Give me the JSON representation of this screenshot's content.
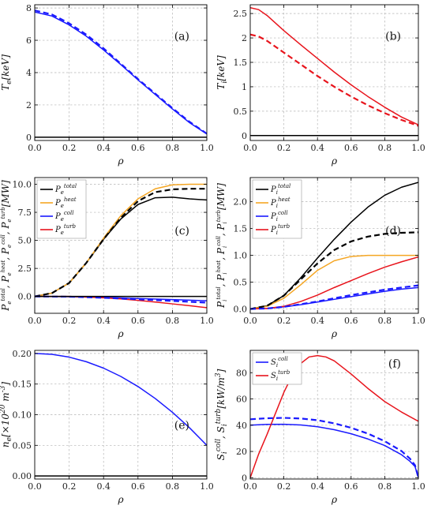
{
  "colors": {
    "black": "#000000",
    "blue": "#1a1aff",
    "red": "#e8141c",
    "orange": "#f5a623"
  },
  "chart_data": [
    {
      "id": "a",
      "type": "line",
      "panel_label": "(a)",
      "xlabel": "ρ",
      "ylabel": "T_e[keV]",
      "xlim": [
        0,
        1
      ],
      "ylim": [
        -0.2,
        8.2
      ],
      "xticks": [
        "0.0",
        "0.2",
        "0.4",
        "0.6",
        "0.8",
        "1.0"
      ],
      "yticks": [
        0,
        2,
        4,
        6,
        8
      ],
      "series": [
        {
          "style": "solid",
          "color": "#000000",
          "x": [
            0,
            1
          ],
          "y": [
            0,
            0
          ]
        },
        {
          "style": "solid",
          "color": "#1a1aff",
          "x": [
            0,
            0.1,
            0.2,
            0.3,
            0.4,
            0.5,
            0.6,
            0.7,
            0.8,
            0.9,
            1.0
          ],
          "y": [
            7.75,
            7.5,
            6.95,
            6.25,
            5.4,
            4.5,
            3.55,
            2.65,
            1.75,
            0.9,
            0.2
          ]
        },
        {
          "style": "dashed",
          "color": "#1a1aff",
          "x": [
            0,
            0.1,
            0.2,
            0.3,
            0.4,
            0.5,
            0.6,
            0.7,
            0.8,
            0.9,
            1.0
          ],
          "y": [
            7.85,
            7.6,
            7.05,
            6.35,
            5.5,
            4.55,
            3.6,
            2.7,
            1.8,
            0.95,
            0.22
          ]
        }
      ]
    },
    {
      "id": "b",
      "type": "line",
      "panel_label": "(b)",
      "xlabel": "ρ",
      "ylabel": "T_i[keV]",
      "xlim": [
        0,
        1
      ],
      "ylim": [
        -0.1,
        2.68
      ],
      "xticks": [
        "0.0",
        "0.2",
        "0.4",
        "0.6",
        "0.8",
        "1.0"
      ],
      "yticks": [
        0.0,
        0.5,
        1.0,
        1.5,
        2.0,
        2.5
      ],
      "series": [
        {
          "style": "solid",
          "color": "#000000",
          "x": [
            0,
            1
          ],
          "y": [
            0,
            0
          ]
        },
        {
          "style": "solid",
          "color": "#e8141c",
          "x": [
            0,
            0.05,
            0.1,
            0.2,
            0.3,
            0.4,
            0.5,
            0.6,
            0.7,
            0.8,
            0.9,
            1.0
          ],
          "y": [
            2.62,
            2.58,
            2.46,
            2.15,
            1.86,
            1.58,
            1.3,
            1.04,
            0.8,
            0.58,
            0.38,
            0.22
          ]
        },
        {
          "style": "dashed",
          "color": "#e8141c",
          "x": [
            0,
            0.05,
            0.1,
            0.2,
            0.3,
            0.4,
            0.5,
            0.6,
            0.7,
            0.8,
            0.9,
            1.0
          ],
          "y": [
            2.07,
            2.03,
            1.94,
            1.7,
            1.46,
            1.22,
            1.0,
            0.8,
            0.62,
            0.46,
            0.32,
            0.2
          ]
        }
      ]
    },
    {
      "id": "c",
      "type": "line",
      "panel_label": "(c)",
      "xlabel": "ρ",
      "ylabel": "P_e^total, P_e^heat, P_e^coll, P_e^turb[MW]",
      "xlim": [
        0,
        1
      ],
      "ylim": [
        -1.5,
        10.6
      ],
      "xticks": [
        "0.0",
        "0.2",
        "0.4",
        "0.6",
        "0.8",
        "1.0"
      ],
      "yticks": [
        "0.0",
        "2.5",
        "5.0",
        "7.5",
        "10.0"
      ],
      "legend": [
        "P_e^total",
        "P_e^heat",
        "P_e^coll",
        "P_e^turb"
      ],
      "legend_placement": "top-left",
      "series": [
        {
          "name": "P_e^total",
          "style": "solid",
          "color": "#000000",
          "x": [
            0,
            0.1,
            0.2,
            0.3,
            0.4,
            0.5,
            0.6,
            0.7,
            0.8,
            0.9,
            1.0
          ],
          "y": [
            0,
            0.3,
            1.2,
            3.0,
            5.1,
            6.9,
            8.2,
            8.8,
            8.85,
            8.7,
            8.6
          ]
        },
        {
          "name": "P_e^heat",
          "style": "solid",
          "color": "#f5a623",
          "x": [
            0,
            0.1,
            0.2,
            0.3,
            0.4,
            0.5,
            0.6,
            0.7,
            0.8,
            0.9,
            1.0
          ],
          "y": [
            0,
            0.3,
            1.2,
            3.0,
            5.2,
            7.2,
            8.7,
            9.6,
            9.95,
            10.0,
            10.0
          ]
        },
        {
          "name": "P_e^coll",
          "style": "solid",
          "color": "#1a1aff",
          "x": [
            0,
            0.2,
            0.4,
            0.6,
            0.8,
            1.0
          ],
          "y": [
            0,
            -0.02,
            -0.08,
            -0.18,
            -0.28,
            -0.38
          ]
        },
        {
          "name": "P_e^turb",
          "style": "solid",
          "color": "#e8141c",
          "x": [
            0,
            0.2,
            0.3,
            0.4,
            0.5,
            0.6,
            0.7,
            0.8,
            0.9,
            1.0
          ],
          "y": [
            0,
            0,
            -0.05,
            -0.12,
            -0.22,
            -0.35,
            -0.5,
            -0.66,
            -0.82,
            -1.0
          ]
        },
        {
          "style": "dashed",
          "color": "#000000",
          "x": [
            0,
            0.1,
            0.2,
            0.3,
            0.4,
            0.5,
            0.6,
            0.7,
            0.8,
            0.9,
            1.0
          ],
          "y": [
            0,
            0.3,
            1.2,
            3.0,
            5.1,
            7.0,
            8.5,
            9.3,
            9.55,
            9.6,
            9.6
          ]
        },
        {
          "style": "dashed",
          "color": "#1a1aff",
          "x": [
            0,
            0.2,
            0.4,
            0.6,
            0.8,
            1.0
          ],
          "y": [
            0,
            -0.02,
            -0.12,
            -0.25,
            -0.4,
            -0.55
          ]
        },
        {
          "style": "solid",
          "color": "#000000",
          "x": [
            0,
            1
          ],
          "y": [
            0,
            0
          ]
        }
      ]
    },
    {
      "id": "d",
      "type": "line",
      "panel_label": "(d)",
      "xlabel": "ρ",
      "ylabel": "P_i^total, P_i^heat, P_i^coll, P_i^turb[MW]",
      "xlim": [
        0,
        1
      ],
      "ylim": [
        -0.08,
        2.45
      ],
      "xticks": [
        "0.0",
        "0.2",
        "0.4",
        "0.6",
        "0.8",
        "1.0"
      ],
      "yticks": [
        "0.0",
        "0.5",
        "1.0",
        "1.5",
        "2.0"
      ],
      "legend": [
        "P_i^total",
        "P_i^heat",
        "P_i^coll",
        "P_i^turb"
      ],
      "legend_placement": "top-left",
      "series": [
        {
          "name": "P_i^total",
          "style": "solid",
          "color": "#000000",
          "x": [
            0,
            0.1,
            0.2,
            0.3,
            0.4,
            0.5,
            0.6,
            0.7,
            0.8,
            0.9,
            1.0
          ],
          "y": [
            0,
            0.06,
            0.25,
            0.58,
            0.95,
            1.3,
            1.62,
            1.9,
            2.12,
            2.27,
            2.36
          ]
        },
        {
          "name": "P_i^heat",
          "style": "solid",
          "color": "#f5a623",
          "x": [
            0,
            0.1,
            0.2,
            0.3,
            0.4,
            0.5,
            0.6,
            0.7,
            0.8,
            0.9,
            1.0
          ],
          "y": [
            0,
            0.05,
            0.2,
            0.45,
            0.72,
            0.9,
            0.98,
            1.0,
            1.0,
            1.0,
            1.0
          ]
        },
        {
          "name": "P_i^coll",
          "style": "solid",
          "color": "#1a1aff",
          "x": [
            0,
            0.1,
            0.2,
            0.3,
            0.4,
            0.5,
            0.6,
            0.7,
            0.8,
            0.9,
            1.0
          ],
          "y": [
            0,
            0.01,
            0.04,
            0.08,
            0.13,
            0.18,
            0.23,
            0.28,
            0.33,
            0.37,
            0.4
          ]
        },
        {
          "name": "P_i^turb",
          "style": "solid",
          "color": "#e8141c",
          "x": [
            0,
            0.1,
            0.2,
            0.3,
            0.4,
            0.5,
            0.6,
            0.7,
            0.8,
            0.9,
            1.0
          ],
          "y": [
            0,
            0.01,
            0.05,
            0.14,
            0.26,
            0.4,
            0.53,
            0.66,
            0.78,
            0.88,
            0.97
          ]
        },
        {
          "style": "dashed",
          "color": "#000000",
          "x": [
            0,
            0.1,
            0.2,
            0.3,
            0.4,
            0.5,
            0.6,
            0.7,
            0.8,
            0.9,
            1.0
          ],
          "y": [
            0,
            0.06,
            0.25,
            0.55,
            0.85,
            1.1,
            1.26,
            1.35,
            1.4,
            1.42,
            1.43
          ]
        },
        {
          "style": "dashed",
          "color": "#1a1aff",
          "x": [
            0,
            0.1,
            0.2,
            0.3,
            0.4,
            0.5,
            0.6,
            0.7,
            0.8,
            0.9,
            1.0
          ],
          "y": [
            0,
            0.01,
            0.04,
            0.09,
            0.14,
            0.2,
            0.26,
            0.31,
            0.36,
            0.4,
            0.44
          ]
        }
      ]
    },
    {
      "id": "e",
      "type": "line",
      "panel_label": "(e)",
      "xlabel": "ρ",
      "ylabel": "n_e[×10^20 m^-3]",
      "xlim": [
        0,
        1
      ],
      "ylim": [
        -0.005,
        0.205
      ],
      "xticks": [
        "0.0",
        "0.2",
        "0.4",
        "0.6",
        "0.8",
        "1.0"
      ],
      "yticks": [
        "0.00",
        "0.05",
        "0.10",
        "0.15",
        "0.20"
      ],
      "series": [
        {
          "style": "solid",
          "color": "#000000",
          "x": [
            0,
            1
          ],
          "y": [
            0,
            0
          ]
        },
        {
          "style": "solid",
          "color": "#1a1aff",
          "x": [
            0,
            0.1,
            0.2,
            0.3,
            0.4,
            0.5,
            0.6,
            0.7,
            0.8,
            0.9,
            1.0
          ],
          "y": [
            0.2,
            0.1985,
            0.194,
            0.1865,
            0.176,
            0.1625,
            0.146,
            0.1265,
            0.104,
            0.0785,
            0.05
          ]
        }
      ]
    },
    {
      "id": "f",
      "type": "line",
      "panel_label": "(f)",
      "xlabel": "ρ",
      "ylabel": "S_i^coll, S_i^turb[kW/m^3]",
      "xlim": [
        0,
        1
      ],
      "ylim": [
        -1,
        97
      ],
      "xticks": [
        "0.0",
        "0.2",
        "0.4",
        "0.6",
        "0.8",
        "1.0"
      ],
      "yticks": [
        0,
        20,
        40,
        60,
        80
      ],
      "legend": [
        "S_i^coll",
        "S_i^turb"
      ],
      "legend_placement": "top-left",
      "series": [
        {
          "name": "S_i^coll",
          "style": "solid",
          "color": "#1a1aff",
          "x": [
            0,
            0.1,
            0.2,
            0.3,
            0.4,
            0.5,
            0.6,
            0.7,
            0.8,
            0.9,
            0.95,
            0.98,
            1.0
          ],
          "y": [
            40,
            40.6,
            40.7,
            40.2,
            38.8,
            36.6,
            33.5,
            29.5,
            24.5,
            17.5,
            12.5,
            8.5,
            0
          ]
        },
        {
          "name": "S_i^turb",
          "style": "solid",
          "color": "#e8141c",
          "x": [
            0,
            0.05,
            0.1,
            0.15,
            0.2,
            0.25,
            0.3,
            0.35,
            0.4,
            0.45,
            0.5,
            0.6,
            0.7,
            0.8,
            0.9,
            1.0
          ],
          "y": [
            0,
            18,
            33,
            49,
            65,
            78,
            87,
            92,
            93,
            92,
            89,
            79,
            68,
            58,
            50,
            43
          ]
        },
        {
          "style": "dashed",
          "color": "#1a1aff",
          "x": [
            0,
            0.1,
            0.2,
            0.3,
            0.4,
            0.5,
            0.6,
            0.7,
            0.8,
            0.9,
            0.95,
            0.98,
            1.0
          ],
          "y": [
            44.5,
            45.3,
            45.6,
            45.1,
            43.8,
            41.4,
            38.0,
            33.6,
            27.8,
            20.3,
            14.5,
            9.5,
            0
          ]
        }
      ]
    }
  ]
}
